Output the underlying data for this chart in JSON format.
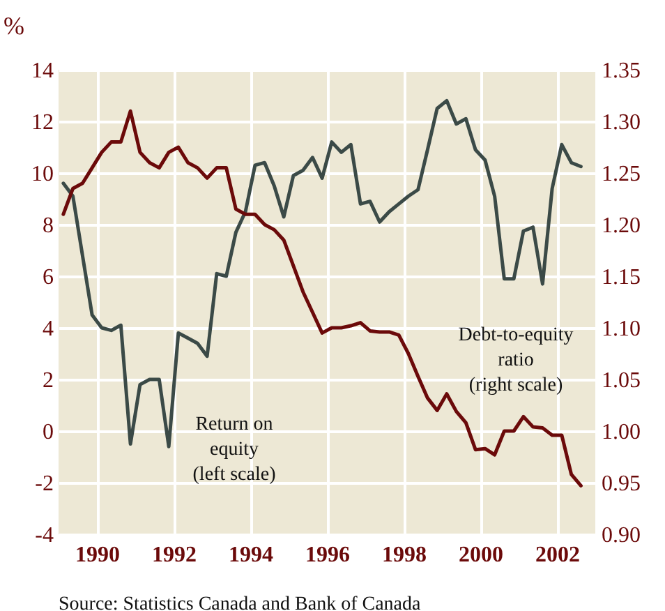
{
  "chart_data": {
    "type": "line",
    "ylabel": "%",
    "x": [
      1989.125,
      1989.375,
      1989.625,
      1989.875,
      1990.125,
      1990.375,
      1990.625,
      1990.875,
      1991.125,
      1991.375,
      1991.625,
      1991.875,
      1992.125,
      1992.375,
      1992.625,
      1992.875,
      1993.125,
      1993.375,
      1993.625,
      1993.875,
      1994.125,
      1994.375,
      1994.625,
      1994.875,
      1995.125,
      1995.375,
      1995.625,
      1995.875,
      1996.125,
      1996.375,
      1996.625,
      1996.875,
      1997.125,
      1997.375,
      1997.625,
      1997.875,
      1998.125,
      1998.375,
      1998.625,
      1998.875,
      1999.125,
      1999.375,
      1999.625,
      1999.875,
      2000.125,
      2000.375,
      2000.625,
      2000.875,
      2001.125,
      2001.375,
      2001.625,
      2001.875,
      2002.125,
      2002.375,
      2002.625
    ],
    "series": [
      {
        "name": "Return on equity (left scale)",
        "type": "line",
        "color": "#3b4a47",
        "values": [
          9.6,
          9.1,
          6.8,
          4.5,
          4.0,
          3.9,
          4.1,
          -0.5,
          1.8,
          2.0,
          2.0,
          -0.6,
          3.8,
          3.6,
          3.4,
          2.9,
          6.1,
          6.0,
          7.7,
          8.5,
          10.3,
          10.4,
          9.5,
          8.3,
          9.9,
          10.1,
          10.6,
          9.8,
          11.2,
          10.8,
          11.1,
          8.8,
          8.9,
          8.1,
          8.5,
          8.8,
          9.1,
          9.35,
          10.9,
          12.5,
          12.8,
          11.9,
          12.1,
          10.9,
          10.5,
          9.1,
          5.9,
          5.9,
          7.75,
          7.9,
          5.7,
          9.4,
          11.1,
          10.4,
          10.25
        ]
      },
      {
        "name": "Debt-to-equity ratio (right scale)",
        "type": "line",
        "axis": "y2",
        "color": "#6b0a0a",
        "values": [
          1.21,
          1.235,
          1.24,
          1.255,
          1.27,
          1.28,
          1.28,
          1.31,
          1.27,
          1.26,
          1.255,
          1.27,
          1.275,
          1.26,
          1.255,
          1.245,
          1.255,
          1.255,
          1.215,
          1.21,
          1.21,
          1.2,
          1.195,
          1.185,
          1.16,
          1.135,
          1.115,
          1.095,
          1.1,
          1.1,
          1.102,
          1.105,
          1.097,
          1.096,
          1.096,
          1.093,
          1.075,
          1.053,
          1.032,
          1.02,
          1.036,
          1.019,
          1.008,
          0.982,
          0.983,
          0.977,
          1.0,
          1.0,
          1.014,
          1.004,
          1.003,
          0.996,
          0.996,
          0.958,
          0.947
        ]
      }
    ],
    "xlim": [
      1989,
      2003
    ],
    "xticks": [
      1990,
      1992,
      1994,
      1996,
      1998,
      2000,
      2002
    ],
    "ylim": [
      -4,
      14
    ],
    "yticks": [
      -4,
      -2,
      0,
      2,
      4,
      6,
      8,
      10,
      12,
      14
    ],
    "y2lim": [
      0.9,
      1.35
    ],
    "y2ticks": [
      {
        "value": 0.9,
        "label": "0.90"
      },
      {
        "value": 0.95,
        "label": "0.95"
      },
      {
        "value": 1.0,
        "label": "1.00"
      },
      {
        "value": 1.05,
        "label": "1.05"
      },
      {
        "value": 1.1,
        "label": "1.10"
      },
      {
        "value": 1.15,
        "label": "1.15"
      },
      {
        "value": 1.2,
        "label": "1.20"
      },
      {
        "value": 1.25,
        "label": "1.25"
      },
      {
        "value": 1.3,
        "label": "1.30"
      },
      {
        "value": 1.35,
        "label": "1.35"
      }
    ],
    "grid": true,
    "annotations": [
      "Source:  Statistics Canada and Bank of Canada"
    ]
  }
}
